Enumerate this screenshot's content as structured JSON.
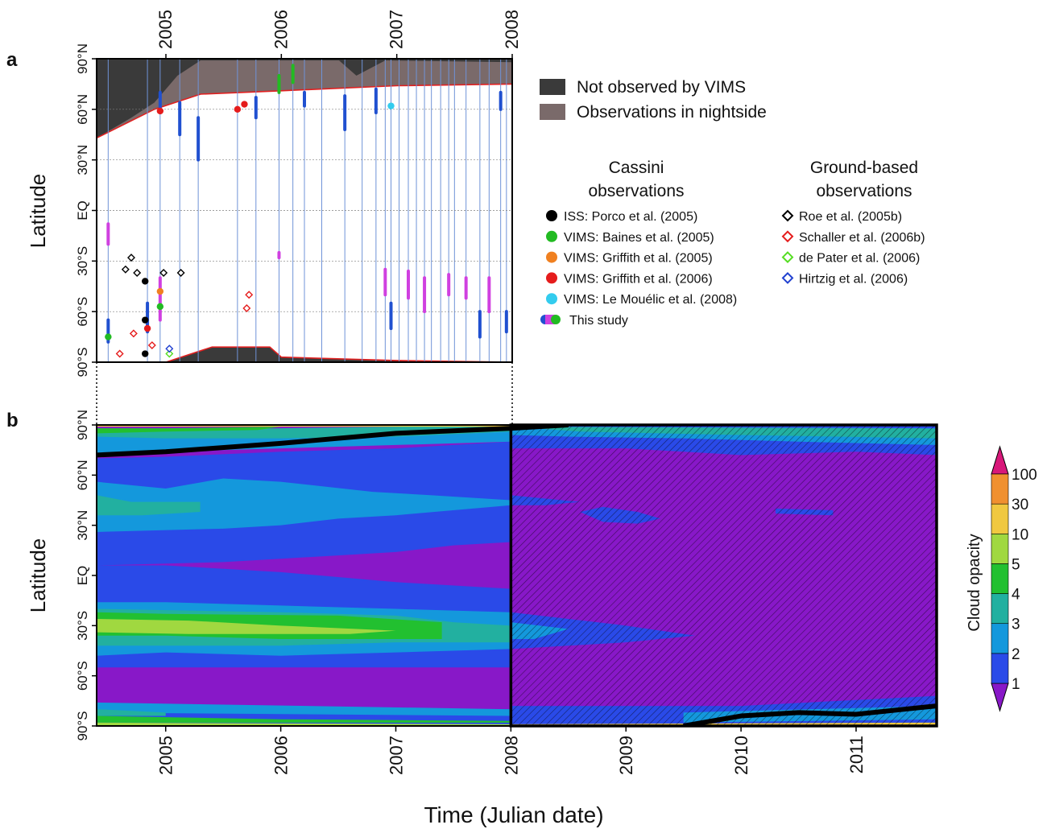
{
  "chart_data": [
    {
      "panel_label": "a",
      "type": "scatter",
      "ylabel": "Latitude",
      "xlim": [
        2004.4,
        2008.0
      ],
      "ylim": [
        -90,
        90
      ],
      "x_ticks": [
        "2005",
        "2006",
        "2007",
        "2008"
      ],
      "x_tick_values": [
        2005,
        2006,
        2007,
        2008
      ],
      "y_ticks": [
        "90°S",
        "60°S",
        "30°S",
        "EQ",
        "30°N",
        "60°N",
        "90°N"
      ],
      "y_tick_values": [
        -90,
        -60,
        -30,
        0,
        30,
        60,
        90
      ],
      "grid": true,
      "legend_regions": [
        {
          "label": "Not observed by VIMS",
          "color": "#3a3a3a"
        },
        {
          "label": "Observations in nightside",
          "color": "#7a6a6a"
        }
      ],
      "legend_cassini_title": [
        "Cassini",
        "observations"
      ],
      "legend_ground_title": [
        "Ground-based",
        "observations"
      ],
      "cassini_legend": [
        {
          "label": "ISS: Porco et al. (2005)",
          "color": "#000000"
        },
        {
          "label": "VIMS: Baines et al. (2005)",
          "color": "#22bb22"
        },
        {
          "label": "VIMS: Griffith et al. (2005)",
          "color": "#f08020"
        },
        {
          "label": "VIMS: Griffith et al. (2006)",
          "color": "#e51c1c"
        },
        {
          "label": "VIMS: Le Mouélic et al. (2008)",
          "color": "#33ccee"
        },
        {
          "label": "This study",
          "colors": [
            "#2050d0",
            "#d040e0",
            "#22bb22"
          ]
        }
      ],
      "ground_legend": [
        {
          "label": "Roe et al. (2005b)",
          "color": "#000000"
        },
        {
          "label": "Schaller et al. (2006b)",
          "color": "#e51c1c"
        },
        {
          "label": "de Pater et al. (2006)",
          "color": "#55dd22"
        },
        {
          "label": "Hirtzig et al. (2006)",
          "color": "#2040d0"
        }
      ],
      "north_unobserved_boundary": {
        "x": [
          2004.4,
          2004.9,
          2005.3,
          2006.0,
          2007.0,
          2008.0
        ],
        "lat": [
          43,
          60,
          69,
          71,
          74,
          75
        ]
      },
      "north_day_night_boundary": {
        "x": [
          2004.4,
          2004.7,
          2004.9,
          2005.1,
          2005.3,
          2006.0,
          2006.5,
          2006.65,
          2006.9,
          2008.0
        ],
        "lat": [
          43,
          55,
          64,
          80,
          89,
          89,
          89,
          80,
          89,
          88
        ]
      },
      "south_unobserved_boundary": {
        "x": [
          2005.0,
          2005.4,
          2005.9,
          2006.0,
          2007.0,
          2008.0
        ],
        "lat": [
          -90,
          -81,
          -81,
          -87,
          -89,
          -90
        ]
      },
      "observation_dates": [
        2004.5,
        2004.84,
        2004.95,
        2005.12,
        2005.28,
        2005.62,
        2005.78,
        2005.98,
        2006.1,
        2006.2,
        2006.35,
        2006.55,
        2006.7,
        2006.82,
        2006.9,
        2006.95,
        2007.02,
        2007.1,
        2007.17,
        2007.24,
        2007.3,
        2007.38,
        2007.45,
        2007.5,
        2007.6,
        2007.72,
        2007.8,
        2007.9,
        2007.95
      ],
      "this_study_detections": [
        {
          "x": 2004.5,
          "lat0": -65,
          "lat1": -78,
          "color": "#2050d0"
        },
        {
          "x": 2004.5,
          "lat0": -8,
          "lat1": -20,
          "color": "#d040e0"
        },
        {
          "x": 2004.84,
          "lat0": -55,
          "lat1": -72,
          "color": "#2050d0"
        },
        {
          "x": 2004.95,
          "lat0": 70,
          "lat1": 58,
          "color": "#2050d0"
        },
        {
          "x": 2004.95,
          "lat0": -40,
          "lat1": -65,
          "color": "#d040e0"
        },
        {
          "x": 2005.12,
          "lat0": 64,
          "lat1": 45,
          "color": "#2050d0"
        },
        {
          "x": 2005.28,
          "lat0": 55,
          "lat1": 30,
          "color": "#2050d0"
        },
        {
          "x": 2005.78,
          "lat0": 67,
          "lat1": 55,
          "color": "#2050d0"
        },
        {
          "x": 2005.98,
          "lat0": 80,
          "lat1": 70,
          "color": "#22bb22"
        },
        {
          "x": 2005.98,
          "lat0": -25,
          "lat1": -28,
          "color": "#d040e0"
        },
        {
          "x": 2006.1,
          "lat0": 86,
          "lat1": 76,
          "color": "#22bb22"
        },
        {
          "x": 2006.2,
          "lat0": 70,
          "lat1": 62,
          "color": "#2050d0"
        },
        {
          "x": 2006.55,
          "lat0": 68,
          "lat1": 48,
          "color": "#2050d0"
        },
        {
          "x": 2006.82,
          "lat0": 72,
          "lat1": 58,
          "color": "#2050d0"
        },
        {
          "x": 2006.9,
          "lat0": -35,
          "lat1": -50,
          "color": "#d040e0"
        },
        {
          "x": 2006.95,
          "lat0": -55,
          "lat1": -70,
          "color": "#2050d0"
        },
        {
          "x": 2007.1,
          "lat0": -36,
          "lat1": -52,
          "color": "#d040e0"
        },
        {
          "x": 2007.24,
          "lat0": -40,
          "lat1": -60,
          "color": "#d040e0"
        },
        {
          "x": 2007.45,
          "lat0": -38,
          "lat1": -50,
          "color": "#d040e0"
        },
        {
          "x": 2007.6,
          "lat0": -40,
          "lat1": -52,
          "color": "#d040e0"
        },
        {
          "x": 2007.72,
          "lat0": -60,
          "lat1": -75,
          "color": "#2050d0"
        },
        {
          "x": 2007.8,
          "lat0": -40,
          "lat1": -60,
          "color": "#d040e0"
        },
        {
          "x": 2007.9,
          "lat0": 70,
          "lat1": 60,
          "color": "#2050d0"
        },
        {
          "x": 2007.95,
          "lat0": -60,
          "lat1": -72,
          "color": "#2050d0"
        }
      ],
      "literature_points": [
        {
          "x": 2004.5,
          "lat": -75,
          "color": "#22bb22",
          "marker": "circle"
        },
        {
          "x": 2004.82,
          "lat": -42,
          "color": "#000000",
          "marker": "circle"
        },
        {
          "x": 2004.82,
          "lat": -65,
          "color": "#000000",
          "marker": "circle"
        },
        {
          "x": 2004.82,
          "lat": -85,
          "color": "#000000",
          "marker": "circle"
        },
        {
          "x": 2004.84,
          "lat": -70,
          "color": "#e51c1c",
          "marker": "circle"
        },
        {
          "x": 2004.95,
          "lat": 59,
          "color": "#e51c1c",
          "marker": "circle"
        },
        {
          "x": 2004.95,
          "lat": -48,
          "color": "#f08020",
          "marker": "circle"
        },
        {
          "x": 2004.95,
          "lat": -57,
          "color": "#22bb22",
          "marker": "circle"
        },
        {
          "x": 2005.62,
          "lat": 60,
          "color": "#e51c1c",
          "marker": "circle"
        },
        {
          "x": 2005.68,
          "lat": 63,
          "color": "#e51c1c",
          "marker": "circle"
        },
        {
          "x": 2006.95,
          "lat": 62,
          "color": "#33ccee",
          "marker": "circle"
        },
        {
          "x": 2004.7,
          "lat": -28,
          "color": "#000000",
          "marker": "diamond"
        },
        {
          "x": 2004.65,
          "lat": -35,
          "color": "#000000",
          "marker": "diamond"
        },
        {
          "x": 2004.75,
          "lat": -37,
          "color": "#000000",
          "marker": "diamond"
        },
        {
          "x": 2004.98,
          "lat": -37,
          "color": "#000000",
          "marker": "diamond"
        },
        {
          "x": 2005.13,
          "lat": -37,
          "color": "#000000",
          "marker": "diamond"
        },
        {
          "x": 2004.6,
          "lat": -85,
          "color": "#e51c1c",
          "marker": "diamond"
        },
        {
          "x": 2004.72,
          "lat": -73,
          "color": "#e51c1c",
          "marker": "diamond"
        },
        {
          "x": 2004.88,
          "lat": -80,
          "color": "#e51c1c",
          "marker": "diamond"
        },
        {
          "x": 2005.72,
          "lat": -50,
          "color": "#e51c1c",
          "marker": "diamond"
        },
        {
          "x": 2005.7,
          "lat": -58,
          "color": "#e51c1c",
          "marker": "diamond"
        },
        {
          "x": 2005.03,
          "lat": -85,
          "color": "#55dd22",
          "marker": "diamond"
        },
        {
          "x": 2005.03,
          "lat": -82,
          "color": "#2040d0",
          "marker": "diamond"
        }
      ]
    },
    {
      "panel_label": "b",
      "type": "heatmap",
      "xlabel": "Time (Julian date)",
      "ylabel": "Latitude",
      "xlim": [
        2004.4,
        2011.7
      ],
      "ylim": [
        -90,
        90
      ],
      "x_ticks": [
        "2005",
        "2006",
        "2007",
        "2008",
        "2009",
        "2010",
        "2011"
      ],
      "x_tick_values": [
        2005,
        2006,
        2007,
        2008,
        2009,
        2010,
        2011
      ],
      "y_ticks": [
        "90°S",
        "60°S",
        "30°S",
        "EQ",
        "30°N",
        "60°N",
        "90°N"
      ],
      "y_tick_values": [
        -90,
        -60,
        -30,
        0,
        30,
        60,
        90
      ],
      "hatched_extrapolation_start": 2008.0,
      "colorbar": {
        "label": "Cloud opacity",
        "levels": [
          1,
          2,
          3,
          4,
          5,
          10,
          30,
          100
        ],
        "tick_labels": [
          "1",
          "2",
          "3",
          "4",
          "5",
          "10",
          "30",
          "100"
        ],
        "colors": [
          "#8818c8",
          "#2a4ae8",
          "#1498dc",
          "#22b0a0",
          "#22c030",
          "#a0d840",
          "#f0c840",
          "#f09030",
          "#d8187a"
        ]
      },
      "terminator_north": {
        "x": [
          2004.4,
          2005.0,
          2006.0,
          2007.0,
          2008.0,
          2008.5
        ],
        "lat": [
          72,
          74,
          79,
          85,
          88,
          90
        ]
      },
      "terminator_south": {
        "x": [
          2009.5,
          2010.0,
          2010.5,
          2011.0,
          2011.7
        ],
        "lat": [
          -90,
          -84,
          -82,
          -83,
          -78
        ]
      }
    }
  ]
}
